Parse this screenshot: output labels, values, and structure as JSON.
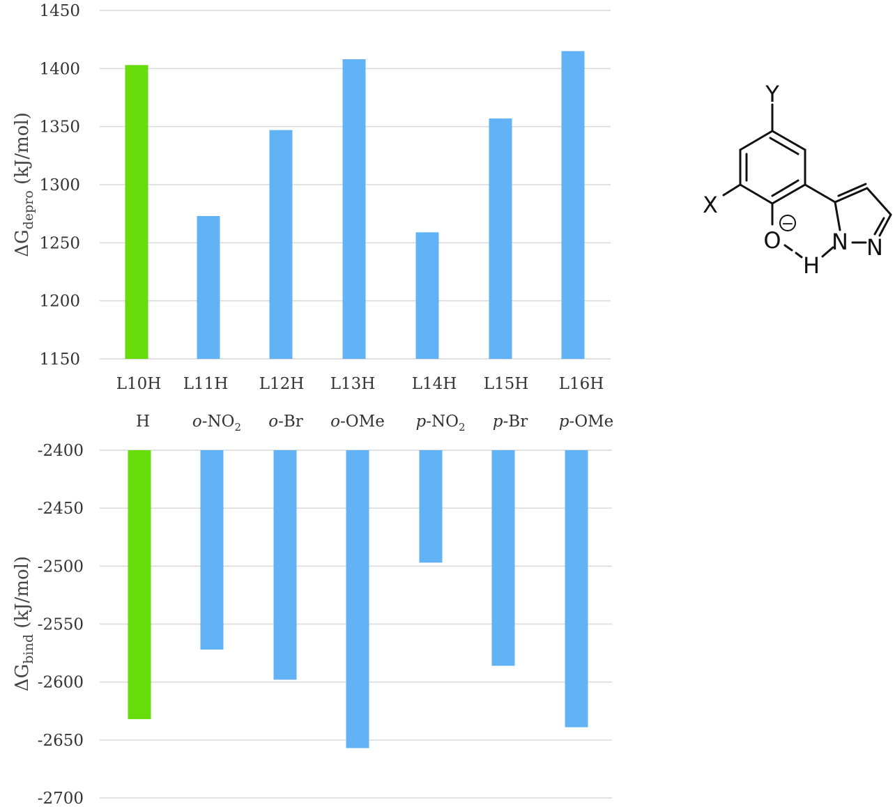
{
  "chart_data": [
    {
      "type": "bar",
      "categories": [
        "L10H",
        "L11H",
        "L12H",
        "L13H",
        "L14H",
        "L15H",
        "L16H"
      ],
      "substituents": [
        {
          "prefix": "",
          "body": "H",
          "sub": ""
        },
        {
          "prefix": "o",
          "body": "-NO",
          "sub": "2"
        },
        {
          "prefix": "o",
          "body": "-Br",
          "sub": ""
        },
        {
          "prefix": "o",
          "body": "-OMe",
          "sub": ""
        },
        {
          "prefix": "p",
          "body": "-NO",
          "sub": "2"
        },
        {
          "prefix": "p",
          "body": "-Br",
          "sub": ""
        },
        {
          "prefix": "p",
          "body": "-OMe",
          "sub": ""
        }
      ],
      "values": [
        1403,
        1273,
        1347,
        1408,
        1259,
        1357,
        1415
      ],
      "colors": [
        "#66dd0a",
        "#62b3f5",
        "#62b3f5",
        "#62b3f5",
        "#62b3f5",
        "#62b3f5",
        "#62b3f5"
      ],
      "ylabel": {
        "main": "ΔG",
        "sub": "depro",
        "rest": " (kJ/mol)"
      },
      "ylim": [
        1150,
        1450
      ],
      "yticks": [
        1450,
        1400,
        1350,
        1300,
        1250,
        1200,
        1150
      ],
      "grid": true
    },
    {
      "type": "bar",
      "categories": [
        "L10H",
        "L11H",
        "L12H",
        "L13H",
        "L14H",
        "L15H",
        "L16H"
      ],
      "values": [
        -2632,
        -2572,
        -2598,
        -2657,
        -2497,
        -2586,
        -2639
      ],
      "colors": [
        "#66dd0a",
        "#62b3f5",
        "#62b3f5",
        "#62b3f5",
        "#62b3f5",
        "#62b3f5",
        "#62b3f5"
      ],
      "ylabel": {
        "main": "ΔG",
        "sub": "bind",
        "rest": " (kJ/mol)"
      },
      "ylim": [
        -2700,
        -2400
      ],
      "yticks": [
        -2400,
        -2450,
        -2500,
        -2550,
        -2600,
        -2650,
        -2700
      ],
      "grid": true
    }
  ],
  "structure": {
    "atoms": {
      "Y": "Y",
      "X": "X",
      "O": "O",
      "H": "H",
      "N1": "N",
      "N2": "N",
      "charge": "−"
    }
  }
}
